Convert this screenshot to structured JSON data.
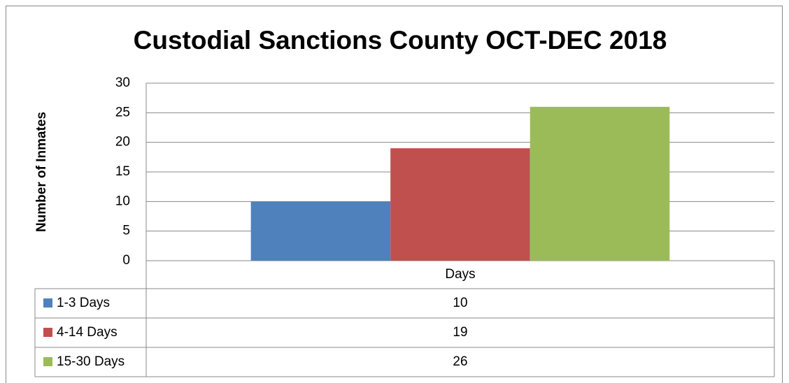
{
  "chart_data": {
    "type": "bar",
    "title": "Custodial Sanctions County  OCT-DEC 2018",
    "y_label": "Number of  Inmates",
    "categories": [
      "Days"
    ],
    "series": [
      {
        "name": "1-3 Days",
        "color": "#4f81bd",
        "values": [
          10
        ]
      },
      {
        "name": "4-14 Days",
        "color": "#c0504d",
        "values": [
          19
        ]
      },
      {
        "name": "15-30 Days",
        "color": "#9bbb59",
        "values": [
          26
        ]
      }
    ],
    "ylim": [
      0,
      30
    ],
    "yticks": [
      0,
      5,
      10,
      15,
      20,
      25,
      30
    ],
    "grid": true,
    "data_table": true
  }
}
